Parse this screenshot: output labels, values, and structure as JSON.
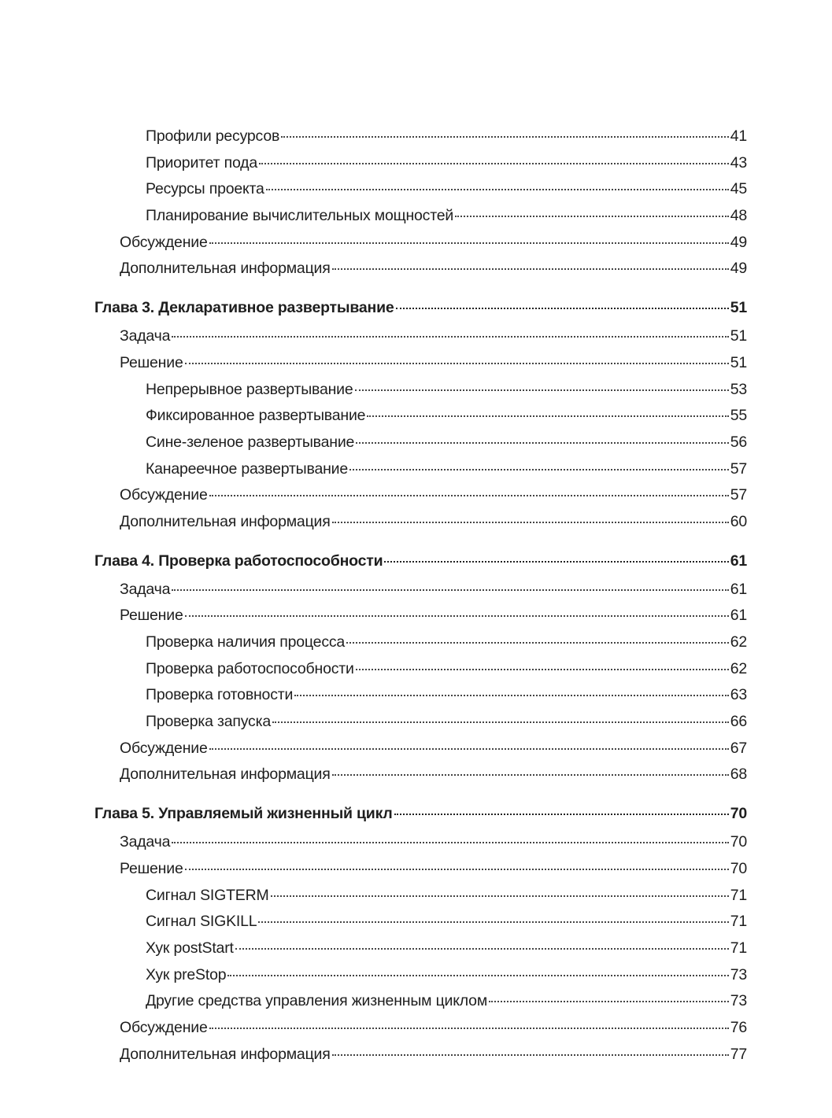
{
  "toc": [
    {
      "level": 2,
      "title": "Профили ресурсов",
      "page": "41"
    },
    {
      "level": 2,
      "title": "Приоритет пода",
      "page": "43"
    },
    {
      "level": 2,
      "title": "Ресурсы проекта",
      "page": "45"
    },
    {
      "level": 2,
      "title": "Планирование вычислительных мощностей",
      "page": "48"
    },
    {
      "level": 1,
      "title": "Обсуждение",
      "page": "49"
    },
    {
      "level": 1,
      "title": "Дополнительная информация",
      "page": "49"
    },
    {
      "level": 0,
      "title": "Глава 3. Декларативное развертывание",
      "page": "51"
    },
    {
      "level": 1,
      "title": "Задача",
      "page": "51"
    },
    {
      "level": 1,
      "title": "Решение",
      "page": "51"
    },
    {
      "level": 2,
      "title": "Непрерывное развертывание",
      "page": "53"
    },
    {
      "level": 2,
      "title": "Фиксированное развертывание",
      "page": "55"
    },
    {
      "level": 2,
      "title": "Сине-зеленое развертывание",
      "page": "56"
    },
    {
      "level": 2,
      "title": "Канареечное развертывание",
      "page": "57"
    },
    {
      "level": 1,
      "title": "Обсуждение",
      "page": "57"
    },
    {
      "level": 1,
      "title": "Дополнительная информация",
      "page": "60"
    },
    {
      "level": 0,
      "title": "Глава 4. Проверка работоспособности",
      "page": "61"
    },
    {
      "level": 1,
      "title": "Задача",
      "page": "61"
    },
    {
      "level": 1,
      "title": "Решение",
      "page": "61"
    },
    {
      "level": 2,
      "title": "Проверка наличия процесса",
      "page": "62"
    },
    {
      "level": 2,
      "title": "Проверка работоспособности",
      "page": "62"
    },
    {
      "level": 2,
      "title": "Проверка готовности",
      "page": "63"
    },
    {
      "level": 2,
      "title": "Проверка запуска",
      "page": "66"
    },
    {
      "level": 1,
      "title": "Обсуждение",
      "page": "67"
    },
    {
      "level": 1,
      "title": "Дополнительная информация",
      "page": "68"
    },
    {
      "level": 0,
      "title": "Глава 5. Управляемый жизненный цикл",
      "page": "70"
    },
    {
      "level": 1,
      "title": "Задача",
      "page": "70"
    },
    {
      "level": 1,
      "title": "Решение",
      "page": "70"
    },
    {
      "level": 2,
      "title": "Сигнал SIGTERM",
      "page": "71"
    },
    {
      "level": 2,
      "title": "Сигнал SIGKILL",
      "page": "71"
    },
    {
      "level": 2,
      "title": "Хук postStart",
      "page": "71"
    },
    {
      "level": 2,
      "title": "Хук preStop",
      "page": "73"
    },
    {
      "level": 2,
      "title": "Другие средства управления жизненным циклом",
      "page": "73"
    },
    {
      "level": 1,
      "title": "Обсуждение",
      "page": "76"
    },
    {
      "level": 1,
      "title": "Дополнительная информация",
      "page": "77"
    }
  ]
}
